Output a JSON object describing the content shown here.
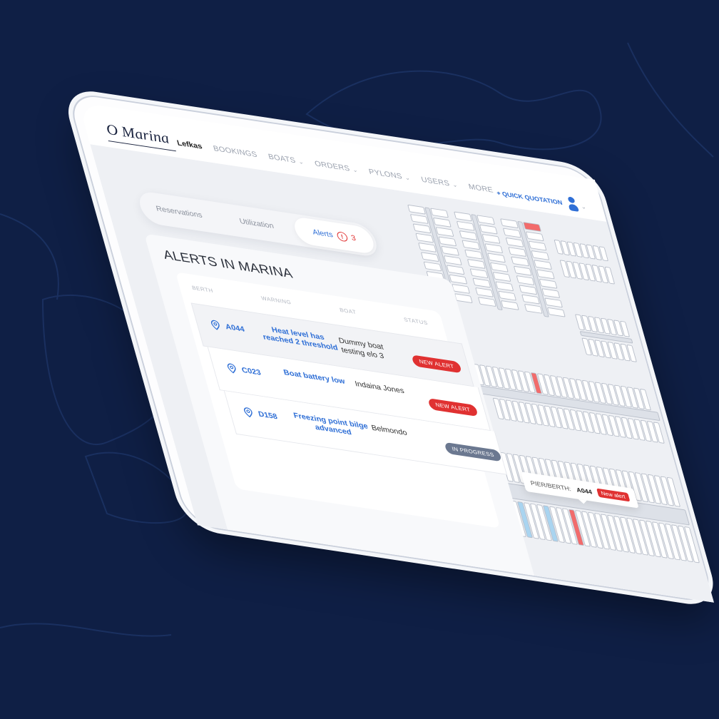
{
  "logo": "O Marina",
  "nav": {
    "items": [
      {
        "label": "Lefkas",
        "active": true,
        "dropdown": false
      },
      {
        "label": "BOOKINGS",
        "dropdown": false
      },
      {
        "label": "BOATS",
        "dropdown": true
      },
      {
        "label": "ORDERS",
        "dropdown": true
      },
      {
        "label": "PYLONS",
        "dropdown": true
      },
      {
        "label": "USERS",
        "dropdown": true
      },
      {
        "label": "MORE",
        "dropdown": true
      }
    ],
    "chevron": "⌄"
  },
  "header": {
    "quick_quotation": "+ QUICK QUOTATION",
    "avatar_icon": "user-icon"
  },
  "tabs": {
    "reservations": "Reservations",
    "utilization": "Utilization",
    "alerts": "Alerts",
    "alerts_icon": "!",
    "alerts_count": "3"
  },
  "alerts": {
    "title": "ALERTS IN MARINA",
    "columns": {
      "berth": "BERTH",
      "warning": "WARNING",
      "boat": "BOAT",
      "status": "STATUS"
    },
    "rows": [
      {
        "berth": "A044",
        "warning": "Heat level has reached 2 threshold",
        "boat": "Dummy boat testing elo 3",
        "status": "NEW ALERT",
        "status_color": "#e03131"
      },
      {
        "berth": "C023",
        "warning": "Boat battery low",
        "boat": "Indaina Jones",
        "status": "NEW ALERT",
        "status_color": "#e03131"
      },
      {
        "berth": "D158",
        "warning": "Freezing point bilge advanced",
        "boat": "Belmondo",
        "status": "IN PROGRESS",
        "status_color": "#6b7890"
      }
    ]
  },
  "map": {
    "tooltip": {
      "label": "PIER/BERTH:",
      "berth": "A044",
      "badge": "New alert"
    },
    "colors": {
      "alert": "#f26b6b",
      "occupied": "#a9d4f0",
      "reserved": "#f5df8a",
      "free": "#ffffff"
    }
  },
  "colors": {
    "accent": "#2f6fd6",
    "background": "#0f1f45"
  }
}
